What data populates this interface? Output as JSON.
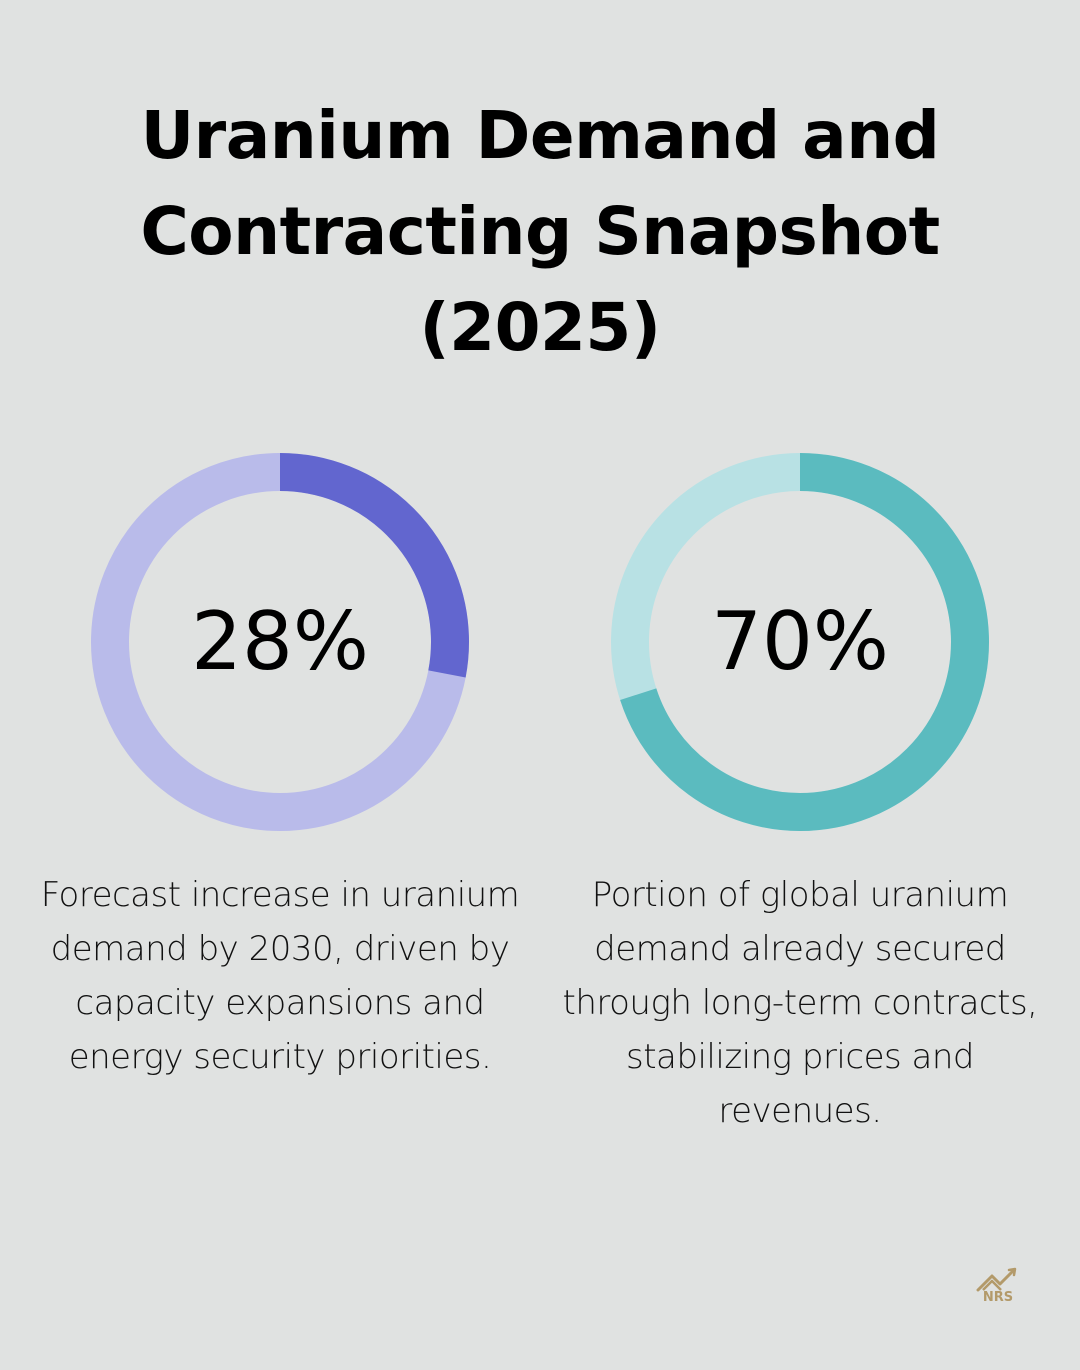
{
  "title": "Uranium Demand and Contracting Snapshot (2025)",
  "chart_data": [
    {
      "type": "donut",
      "value": 28,
      "label": "28%",
      "description": "Forecast increase in uranium demand by 2030, driven by capacity expansions and energy security priorities.",
      "colors": {
        "fill": "#6266cf",
        "track": "#b9bbea"
      }
    },
    {
      "type": "donut",
      "value": 70,
      "label": "70%",
      "description": "Portion of global uranium demand already secured through long-term contracts, stabilizing prices and revenues.",
      "colors": {
        "fill": "#5bbbbf",
        "track": "#b8e1e4"
      }
    }
  ],
  "logo": {
    "text": "NRS",
    "color": "#b39a6a"
  }
}
